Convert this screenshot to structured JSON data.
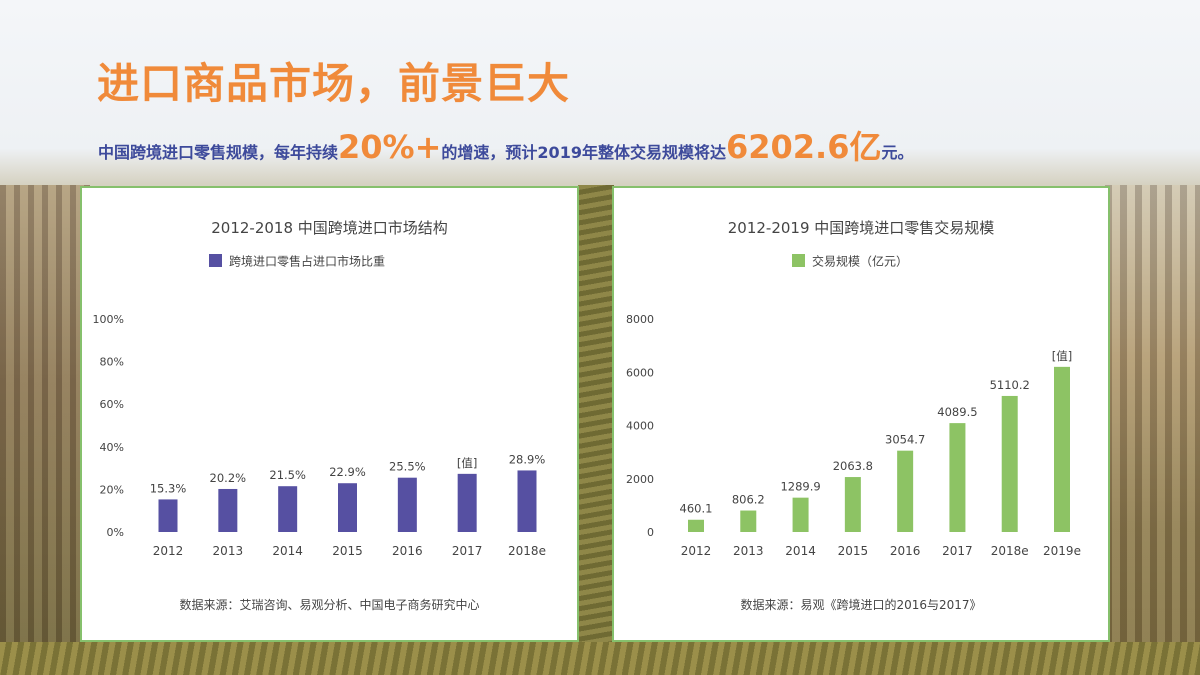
{
  "header": {
    "title": "进口商品市场，前景巨大",
    "subtitle_parts": [
      "中国跨境进口零售规模，每年持续",
      "20%+",
      "的增速，预计2019年整体交易规模将达",
      "6202.6亿",
      "元。"
    ]
  },
  "colors": {
    "accent_orange": "#f08a3a",
    "text_navy": "#3d4a9b",
    "bar_purple": "#5650a2",
    "bar_green": "#8dc364",
    "panel_border": "#86c06c"
  },
  "chart_data": [
    {
      "type": "bar",
      "title": "2012-2018 中国跨境进口市场结构",
      "legend": "跨境进口零售占进口市场比重",
      "categories": [
        "2012",
        "2013",
        "2014",
        "2015",
        "2016",
        "2017",
        "2018e"
      ],
      "values": [
        15.3,
        20.2,
        21.5,
        22.9,
        25.5,
        27.3,
        28.9
      ],
      "labels": [
        "15.3%",
        "20.2%",
        "21.5%",
        "22.9%",
        "25.5%",
        "[值]",
        "28.9%"
      ],
      "ylim": [
        0,
        100
      ],
      "yticks": [
        "0%",
        "20%",
        "40%",
        "60%",
        "80%",
        "100%"
      ],
      "ytick_values": [
        0,
        20,
        40,
        60,
        80,
        100
      ],
      "source": "数据来源：艾瑞咨询、易观分析、中国电子商务研究中心"
    },
    {
      "type": "bar",
      "title": "2012-2019 中国跨境进口零售交易规模",
      "legend": "交易规模（亿元）",
      "categories": [
        "2012",
        "2013",
        "2014",
        "2015",
        "2016",
        "2017",
        "2018e",
        "2019e"
      ],
      "values": [
        460.1,
        806.2,
        1289.9,
        2063.8,
        3054.7,
        4089.5,
        5110.2,
        6202.6
      ],
      "labels": [
        "460.1",
        "806.2",
        "1289.9",
        "2063.8",
        "3054.7",
        "4089.5",
        "5110.2",
        "[值]"
      ],
      "ylim": [
        0,
        8000
      ],
      "yticks": [
        "0",
        "2000",
        "4000",
        "6000",
        "8000"
      ],
      "ytick_values": [
        0,
        2000,
        4000,
        6000,
        8000
      ],
      "source": "数据来源：易观《跨境进口的2016与2017》"
    }
  ]
}
